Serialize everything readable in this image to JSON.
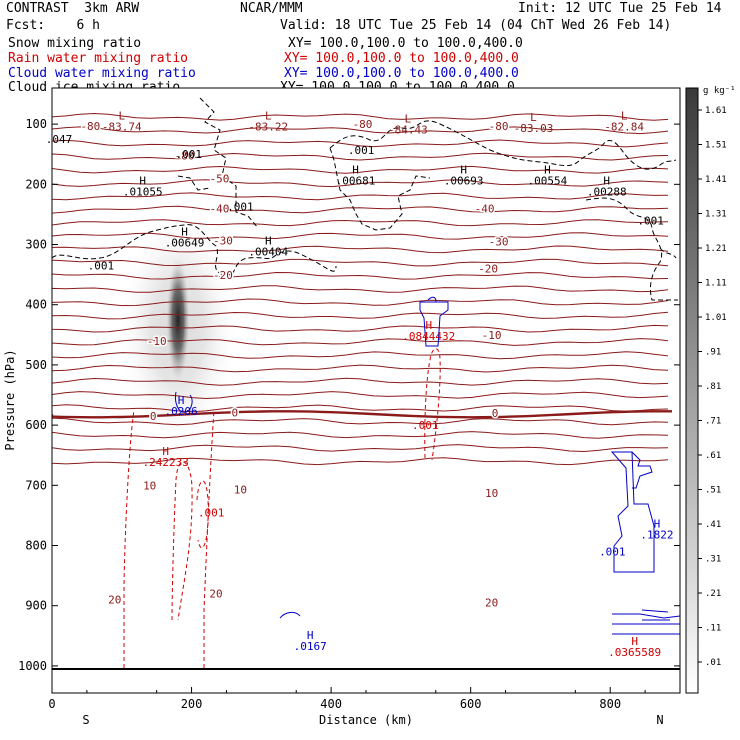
{
  "header": {
    "model": "CONTRAST  3km ARW",
    "center": "NCAR/MMM",
    "init": "Init: 12 UTC Tue 25 Feb 14",
    "fcst": "Fcst:    6 h",
    "valid": "Valid: 18 UTC Tue 25 Feb 14 (04 ChT Wed 26 Feb 14)"
  },
  "fields": [
    {
      "name": "Snow mixing ratio",
      "xy": "XY= 100.0,100.0 to 100.0,400.0",
      "color": "#000000"
    },
    {
      "name": "Rain water mixing ratio",
      "xy": "XY= 100.0,100.0 to 100.0,400.0",
      "color": "#d00000"
    },
    {
      "name": "Cloud water mixing ratio",
      "xy": "XY= 100.0,100.0 to 100.0,400.0",
      "color": "#0000c8"
    },
    {
      "name": "Cloud ice mixing ratio",
      "xy": "XY= 100.0,100.0 to 100.0,400.0",
      "color": "#000000"
    }
  ],
  "chart_data": {
    "type": "cross-section",
    "xlabel": "Distance (km)",
    "ylabel": "Pressure (hPa)",
    "xlim": [
      0,
      900
    ],
    "ylim": [
      1045,
      40
    ],
    "xticks": [
      "0",
      "200",
      "400",
      "600",
      "800"
    ],
    "yticks": [
      "100",
      "200",
      "300",
      "400",
      "500",
      "600",
      "700",
      "800",
      "900",
      "1000"
    ],
    "end_labels": {
      "left": "S",
      "right": "N"
    },
    "colorbar": {
      "unit": "g kg⁻¹",
      "labels": [
        ".01",
        ".11",
        ".21",
        ".31",
        ".41",
        ".51",
        ".61",
        ".71",
        ".81",
        ".91",
        "1.01",
        "1.11",
        "1.21",
        "1.31",
        "1.41",
        "1.51",
        "1.61"
      ]
    },
    "temperature_contour_color": "#8b1a1a",
    "temperature_labels": [
      {
        "x": 55,
        "p": 103,
        "t": "-80"
      },
      {
        "x": 190,
        "p": 152,
        "t": "-80"
      },
      {
        "x": 445,
        "p": 100,
        "t": "-80"
      },
      {
        "x": 640,
        "p": 103,
        "t": "-80"
      },
      {
        "x": 240,
        "p": 190,
        "t": "-50"
      },
      {
        "x": 240,
        "p": 240,
        "t": "-40"
      },
      {
        "x": 620,
        "p": 240,
        "t": "-40"
      },
      {
        "x": 245,
        "p": 293,
        "t": "-30"
      },
      {
        "x": 640,
        "p": 295,
        "t": "-30"
      },
      {
        "x": 245,
        "p": 351,
        "t": "-20"
      },
      {
        "x": 625,
        "p": 340,
        "t": "-20"
      },
      {
        "x": 150,
        "p": 460,
        "t": "-10"
      },
      {
        "x": 630,
        "p": 450,
        "t": "-10"
      },
      {
        "x": 145,
        "p": 585,
        "t": "0"
      },
      {
        "x": 262,
        "p": 579,
        "t": "0"
      },
      {
        "x": 635,
        "p": 580,
        "t": "0"
      },
      {
        "x": 140,
        "p": 700,
        "t": "10"
      },
      {
        "x": 270,
        "p": 707,
        "t": "10"
      },
      {
        "x": 630,
        "p": 713,
        "t": "10"
      },
      {
        "x": 90,
        "p": 890,
        "t": "20"
      },
      {
        "x": 235,
        "p": 880,
        "t": "20"
      },
      {
        "x": 630,
        "p": 895,
        "t": "20"
      }
    ],
    "extrema": [
      {
        "x": 100,
        "p": 92,
        "kind": "L",
        "val": "-83.74",
        "color": "#8b1a1a"
      },
      {
        "x": 310,
        "p": 92,
        "kind": "L",
        "val": "-83.22",
        "color": "#8b1a1a"
      },
      {
        "x": 510,
        "p": 97,
        "kind": "L",
        "val": "-84.43",
        "color": "#8b1a1a"
      },
      {
        "x": 690,
        "p": 95,
        "kind": "L",
        "val": "-83.03",
        "color": "#8b1a1a"
      },
      {
        "x": 820,
        "p": 92,
        "kind": "L",
        "val": "-82.84",
        "color": "#8b1a1a"
      },
      {
        "x": 130,
        "p": 200,
        "kind": "H",
        "val": ".01055",
        "color": "#000000"
      },
      {
        "x": 190,
        "p": 285,
        "kind": "H",
        "val": ".00649",
        "color": "#000000"
      },
      {
        "x": 310,
        "p": 300,
        "kind": "H",
        "val": ".00404",
        "color": "#000000"
      },
      {
        "x": 435,
        "p": 182,
        "kind": "H",
        "val": ".00681",
        "color": "#000000"
      },
      {
        "x": 590,
        "p": 182,
        "kind": "H",
        "val": ".00693",
        "color": "#000000"
      },
      {
        "x": 710,
        "p": 182,
        "kind": "H",
        "val": ".00554",
        "color": "#000000"
      },
      {
        "x": 795,
        "p": 200,
        "kind": "H",
        "val": ".00288",
        "color": "#000000"
      },
      {
        "x": 163,
        "p": 650,
        "kind": "H",
        "val": ".242233",
        "color": "#d00000"
      },
      {
        "x": 540,
        "p": 440,
        "kind": "H",
        "val": ".0844432",
        "color": "#d00000"
      },
      {
        "x": 185,
        "p": 565,
        "kind": "H",
        "val": ".0206",
        "color": "#0000c8"
      },
      {
        "x": 867,
        "p": 770,
        "kind": "H",
        "val": ".1822",
        "color": "#0000c8"
      },
      {
        "x": 370,
        "p": 955,
        "kind": "H",
        "val": ".0167",
        "color": "#0000c8"
      },
      {
        "x": 835,
        "p": 965,
        "kind": "H",
        "val": ".0365589",
        "color": "#d00000"
      }
    ],
    "contour_labels": [
      {
        "x": 10,
        "p": 125,
        "t": ".047",
        "color": "#000000"
      },
      {
        "x": 196,
        "p": 150,
        "t": ".001",
        "color": "#000000"
      },
      {
        "x": 443,
        "p": 143,
        "t": ".001",
        "color": "#000000"
      },
      {
        "x": 270,
        "p": 237,
        "t": ".001",
        "color": "#000000"
      },
      {
        "x": 70,
        "p": 335,
        "t": ".001",
        "color": "#000000"
      },
      {
        "x": 858,
        "p": 260,
        "t": ".001",
        "color": "#000000"
      },
      {
        "x": 535,
        "p": 600,
        "t": ".001",
        "color": "#d00000"
      },
      {
        "x": 228,
        "p": 745,
        "t": ".001",
        "color": "#d00000"
      },
      {
        "x": 803,
        "p": 810,
        "t": ".001",
        "color": "#0000c8"
      }
    ]
  }
}
